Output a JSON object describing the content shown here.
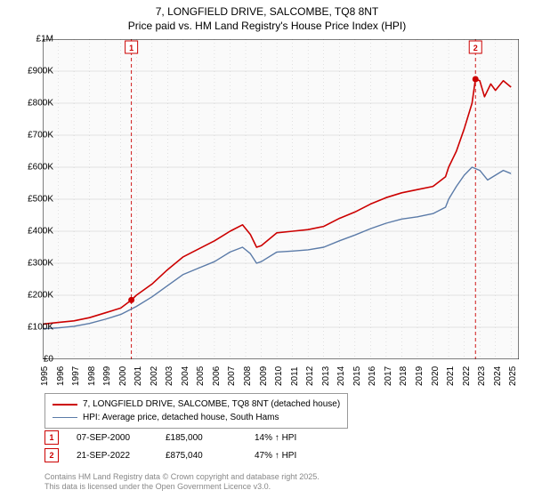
{
  "title": {
    "line1": "7, LONGFIELD DRIVE, SALCOMBE, TQ8 8NT",
    "line2": "Price paid vs. HM Land Registry's House Price Index (HPI)",
    "fontsize": 12,
    "color": "#000000"
  },
  "chart": {
    "type": "line",
    "background_color": "#fafafa",
    "grid_color": "#c8c8c8",
    "axis_color": "#000000",
    "x": {
      "min": 1995,
      "max": 2025.5,
      "ticks": [
        1995,
        1996,
        1997,
        1998,
        1999,
        2000,
        2001,
        2002,
        2003,
        2004,
        2005,
        2006,
        2007,
        2008,
        2009,
        2010,
        2011,
        2012,
        2013,
        2014,
        2015,
        2016,
        2017,
        2018,
        2019,
        2020,
        2021,
        2022,
        2023,
        2024,
        2025
      ],
      "tick_labels": [
        "1995",
        "1996",
        "1997",
        "1998",
        "1999",
        "2000",
        "2001",
        "2002",
        "2003",
        "2004",
        "2005",
        "2006",
        "2007",
        "2008",
        "2009",
        "2010",
        "2011",
        "2012",
        "2013",
        "2014",
        "2015",
        "2016",
        "2017",
        "2018",
        "2019",
        "2020",
        "2021",
        "2022",
        "2023",
        "2024",
        "2025"
      ],
      "label_fontsize": 10
    },
    "y": {
      "min": 0,
      "max": 1000000,
      "ticks": [
        0,
        100000,
        200000,
        300000,
        400000,
        500000,
        600000,
        700000,
        800000,
        900000,
        1000000
      ],
      "tick_labels": [
        "£0",
        "£100K",
        "£200K",
        "£300K",
        "£400K",
        "£500K",
        "£600K",
        "£700K",
        "£800K",
        "£900K",
        "£1M"
      ],
      "label_fontsize": 10
    },
    "series": [
      {
        "name": "price_paid",
        "label": "7, LONGFIELD DRIVE, SALCOMBE, TQ8 8NT (detached house)",
        "color": "#cc0000",
        "line_width": 1.6,
        "points": [
          [
            1995,
            110000
          ],
          [
            1996,
            115000
          ],
          [
            1997,
            120000
          ],
          [
            1998,
            130000
          ],
          [
            1999,
            145000
          ],
          [
            2000,
            160000
          ],
          [
            2000.68,
            185000
          ],
          [
            2001,
            200000
          ],
          [
            2002,
            235000
          ],
          [
            2003,
            280000
          ],
          [
            2004,
            320000
          ],
          [
            2005,
            345000
          ],
          [
            2006,
            370000
          ],
          [
            2007,
            400000
          ],
          [
            2007.8,
            420000
          ],
          [
            2008.3,
            390000
          ],
          [
            2008.7,
            350000
          ],
          [
            2009,
            355000
          ],
          [
            2010,
            395000
          ],
          [
            2011,
            400000
          ],
          [
            2012,
            405000
          ],
          [
            2013,
            415000
          ],
          [
            2014,
            440000
          ],
          [
            2015,
            460000
          ],
          [
            2016,
            485000
          ],
          [
            2017,
            505000
          ],
          [
            2018,
            520000
          ],
          [
            2019,
            530000
          ],
          [
            2020,
            540000
          ],
          [
            2020.8,
            570000
          ],
          [
            2021,
            600000
          ],
          [
            2021.5,
            650000
          ],
          [
            2022,
            720000
          ],
          [
            2022.5,
            800000
          ],
          [
            2022.72,
            875040
          ],
          [
            2023,
            870000
          ],
          [
            2023.3,
            820000
          ],
          [
            2023.7,
            860000
          ],
          [
            2024,
            840000
          ],
          [
            2024.5,
            870000
          ],
          [
            2025,
            850000
          ]
        ]
      },
      {
        "name": "hpi",
        "label": "HPI: Average price, detached house, South Hams",
        "color": "#5b7ba8",
        "line_width": 1.4,
        "points": [
          [
            1995,
            95000
          ],
          [
            1996,
            98000
          ],
          [
            1997,
            103000
          ],
          [
            1998,
            112000
          ],
          [
            1999,
            125000
          ],
          [
            2000,
            140000
          ],
          [
            2001,
            165000
          ],
          [
            2002,
            195000
          ],
          [
            2003,
            230000
          ],
          [
            2004,
            265000
          ],
          [
            2005,
            285000
          ],
          [
            2006,
            305000
          ],
          [
            2007,
            335000
          ],
          [
            2007.8,
            350000
          ],
          [
            2008.3,
            330000
          ],
          [
            2008.7,
            300000
          ],
          [
            2009,
            305000
          ],
          [
            2010,
            335000
          ],
          [
            2011,
            338000
          ],
          [
            2012,
            342000
          ],
          [
            2013,
            350000
          ],
          [
            2014,
            370000
          ],
          [
            2015,
            388000
          ],
          [
            2016,
            408000
          ],
          [
            2017,
            425000
          ],
          [
            2018,
            438000
          ],
          [
            2019,
            445000
          ],
          [
            2020,
            455000
          ],
          [
            2020.8,
            475000
          ],
          [
            2021,
            500000
          ],
          [
            2021.5,
            540000
          ],
          [
            2022,
            575000
          ],
          [
            2022.5,
            600000
          ],
          [
            2023,
            590000
          ],
          [
            2023.5,
            560000
          ],
          [
            2024,
            575000
          ],
          [
            2024.5,
            590000
          ],
          [
            2025,
            580000
          ]
        ]
      }
    ],
    "event_markers": [
      {
        "id": "1",
        "x": 2000.68,
        "y": 185000,
        "color": "#cc0000"
      },
      {
        "id": "2",
        "x": 2022.72,
        "y": 875040,
        "color": "#cc0000"
      }
    ],
    "event_line_color": "#cc0000",
    "event_line_dash": "4,3"
  },
  "legend": {
    "items": [
      {
        "color": "#cc0000",
        "label": "7, LONGFIELD DRIVE, SALCOMBE, TQ8 8NT (detached house)",
        "width": 2
      },
      {
        "color": "#5b7ba8",
        "label": "HPI: Average price, detached house, South Hams",
        "width": 1.5
      }
    ],
    "border_color": "#999999",
    "fontsize": 10
  },
  "events": [
    {
      "id": "1",
      "date": "07-SEP-2000",
      "price": "£185,000",
      "delta": "14% ↑ HPI",
      "color": "#cc0000"
    },
    {
      "id": "2",
      "date": "21-SEP-2022",
      "price": "£875,040",
      "delta": "47% ↑ HPI",
      "color": "#cc0000"
    }
  ],
  "footer": {
    "line1": "Contains HM Land Registry data © Crown copyright and database right 2025.",
    "line2": "This data is licensed under the Open Government Licence v3.0.",
    "color": "#888888",
    "fontsize": 9
  }
}
